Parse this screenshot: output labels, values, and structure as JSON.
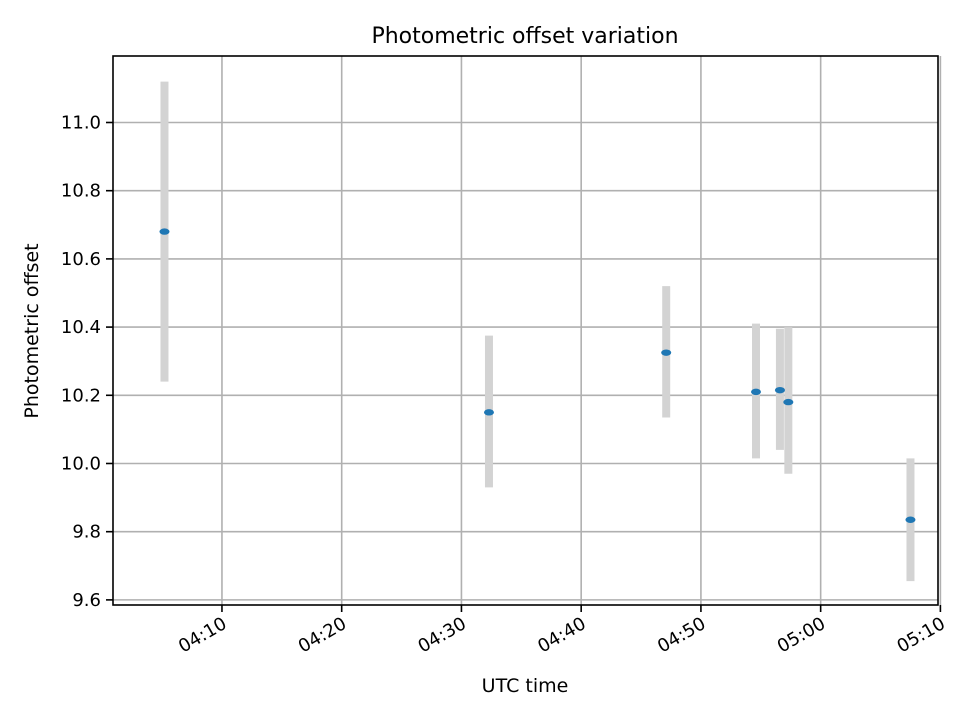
{
  "colors": {
    "point": "#1f77b4",
    "errorbar": "#d3d3d3",
    "grid": "#b0b0b0",
    "frame": "#000000"
  },
  "chart_data": {
    "type": "scatter",
    "title": "Photometric offset variation",
    "xlabel": "UTC time",
    "ylabel": "Photometric offset",
    "grid": true,
    "xlim_minutes": [
      0.9,
      69.8
    ],
    "ylim": [
      9.585,
      11.195
    ],
    "x_ticks": [
      {
        "label": "04:10",
        "minutes": 10
      },
      {
        "label": "04:20",
        "minutes": 20
      },
      {
        "label": "04:30",
        "minutes": 30
      },
      {
        "label": "04:40",
        "minutes": 40
      },
      {
        "label": "04:50",
        "minutes": 50
      },
      {
        "label": "05:00",
        "minutes": 60
      },
      {
        "label": "05:10",
        "minutes": 70
      }
    ],
    "y_ticks": [
      {
        "label": "9.6",
        "value": 9.6
      },
      {
        "label": "9.8",
        "value": 9.8
      },
      {
        "label": "10.0",
        "value": 10.0
      },
      {
        "label": "10.2",
        "value": 10.2
      },
      {
        "label": "10.4",
        "value": 10.4
      },
      {
        "label": "10.6",
        "value": 10.6
      },
      {
        "label": "10.8",
        "value": 10.8
      },
      {
        "label": "11.0",
        "value": 11.0
      }
    ],
    "points": [
      {
        "time": "04:05:12",
        "minutes": 5.2,
        "value": 10.68,
        "lower": 10.24,
        "upper": 11.12
      },
      {
        "time": "04:32:18",
        "minutes": 32.3,
        "value": 10.15,
        "lower": 9.93,
        "upper": 10.375
      },
      {
        "time": "04:47:06",
        "minutes": 47.1,
        "value": 10.325,
        "lower": 10.135,
        "upper": 10.52
      },
      {
        "time": "04:54:36",
        "minutes": 54.6,
        "value": 10.21,
        "lower": 10.015,
        "upper": 10.41
      },
      {
        "time": "04:56:36",
        "minutes": 56.6,
        "value": 10.215,
        "lower": 10.04,
        "upper": 10.395
      },
      {
        "time": "04:57:18",
        "minutes": 57.3,
        "value": 10.18,
        "lower": 9.97,
        "upper": 10.4
      },
      {
        "time": "05:07:30",
        "minutes": 67.5,
        "value": 9.835,
        "lower": 9.655,
        "upper": 10.015
      }
    ]
  }
}
